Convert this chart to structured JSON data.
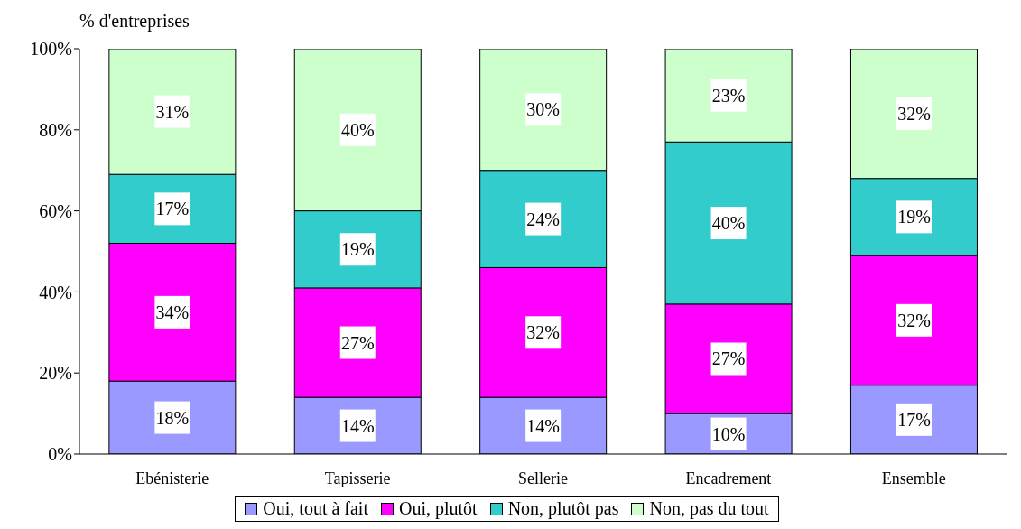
{
  "chart_data": {
    "type": "bar",
    "stacked": true,
    "ylabel": "% d'entreprises",
    "categories": [
      "Ebénisterie",
      "Tapisserie",
      "Sellerie",
      "Encadrement",
      "Ensemble"
    ],
    "series": [
      {
        "name": "Oui, tout à fait",
        "color": "#9999ff",
        "values": [
          18,
          14,
          14,
          10,
          17
        ],
        "value_labels": [
          "18%",
          "14%",
          "14%",
          "10%",
          "17%"
        ]
      },
      {
        "name": "Oui, plutôt",
        "color": "#ff00ff",
        "values": [
          34,
          27,
          32,
          27,
          32
        ],
        "value_labels": [
          "34%",
          "27%",
          "32%",
          "27%",
          "32%"
        ]
      },
      {
        "name": "Non, plutôt pas",
        "color": "#33cccc",
        "values": [
          17,
          19,
          24,
          40,
          19
        ],
        "value_labels": [
          "17%",
          "19%",
          "24%",
          "40%",
          "19%"
        ]
      },
      {
        "name": "Non, pas du tout",
        "color": "#ccffcc",
        "values": [
          31,
          40,
          30,
          23,
          32
        ],
        "value_labels": [
          "31%",
          "40%",
          "30%",
          "23%",
          "32%"
        ]
      }
    ],
    "ylim": [
      0,
      100
    ],
    "yticks": [
      {
        "value": 0,
        "label": "0%"
      },
      {
        "value": 20,
        "label": "20%"
      },
      {
        "value": 40,
        "label": "40%"
      },
      {
        "value": 60,
        "label": "60%"
      },
      {
        "value": 80,
        "label": "80%"
      },
      {
        "value": 100,
        "label": "100%"
      }
    ],
    "grid": false,
    "legend": "bottom"
  }
}
